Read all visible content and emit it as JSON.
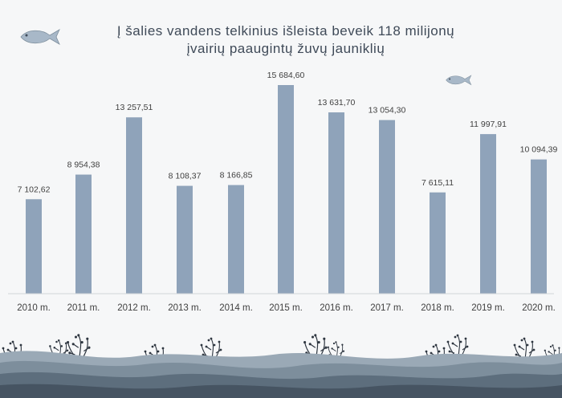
{
  "chart_data": {
    "type": "bar",
    "title_lines": [
      "Į šalies vandens telkinius išleista beveik 118 milijonų",
      "įvairių paaugintų žuvų jauniklių"
    ],
    "categories": [
      "2010 m.",
      "2011 m.",
      "2012 m.",
      "2013 m.",
      "2014 m.",
      "2015 m.",
      "2016 m.",
      "2017 m.",
      "2018 m.",
      "2019 m.",
      "2020 m."
    ],
    "values": [
      7102.62,
      8954.38,
      13257.51,
      8108.37,
      8166.85,
      15684.6,
      13631.7,
      13054.3,
      7615.11,
      11997.91,
      10094.39
    ],
    "labels": [
      "7 102,62",
      "8 954,38",
      "13 257,51",
      "8 108,37",
      "8 166,85",
      "15 684,60",
      "13 631,70",
      "13 054,30",
      "7 615,11",
      "11 997,91",
      "10 094,39"
    ],
    "ylim": [
      0,
      16000
    ],
    "grid": false,
    "bar_color": "#8fa3ba"
  },
  "decor": {
    "fish_color": "#a8b8c8",
    "wave_colors": [
      "#9aa9b6",
      "#7d8e9c",
      "#5d6e7d",
      "#465462"
    ],
    "fish_icon": "fish-icon",
    "seaweed_icon": "seaweed-icon"
  }
}
